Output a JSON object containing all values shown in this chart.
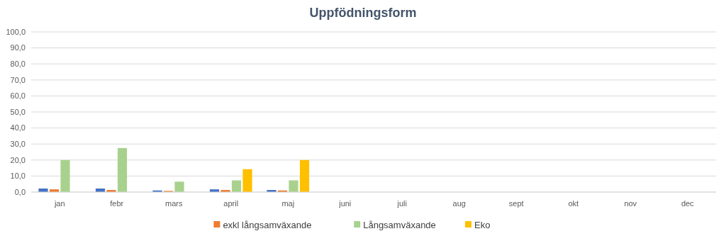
{
  "chart_data": {
    "type": "bar",
    "title": "Uppfödningsform",
    "categories": [
      "jan",
      "febr",
      "mars",
      "april",
      "maj",
      "juni",
      "juli",
      "aug",
      "sept",
      "okt",
      "nov",
      "dec"
    ],
    "series": [
      {
        "color": "#4472c4",
        "values": [
          2.2,
          2.2,
          1.0,
          1.7,
          1.3,
          null,
          null,
          null,
          null,
          null,
          null,
          null
        ]
      },
      {
        "name": "exkl långsamväxande",
        "color": "#ed7d31",
        "values": [
          1.7,
          1.3,
          0.7,
          1.3,
          1.0,
          null,
          null,
          null,
          null,
          null,
          null,
          null
        ]
      },
      {
        "name": "Långsamväxande",
        "color": "#a9d18e",
        "values": [
          20.0,
          27.5,
          6.5,
          7.3,
          7.3,
          null,
          null,
          null,
          null,
          null,
          null,
          null
        ]
      },
      {
        "name": "Eko",
        "color": "#ffc000",
        "values": [
          null,
          null,
          null,
          14.3,
          20.0,
          null,
          null,
          null,
          null,
          null,
          null,
          null
        ]
      }
    ],
    "ylim": [
      0,
      100
    ],
    "yticks": [
      {
        "value": 0,
        "label": "0,0"
      },
      {
        "value": 10,
        "label": "10,0"
      },
      {
        "value": 20,
        "label": "20,0"
      },
      {
        "value": 30,
        "label": "30,0"
      },
      {
        "value": 40,
        "label": "40,0"
      },
      {
        "value": 50,
        "label": "50,0"
      },
      {
        "value": 60,
        "label": "60,0"
      },
      {
        "value": 70,
        "label": "70,0"
      },
      {
        "value": 80,
        "label": "80,0"
      },
      {
        "value": 90,
        "label": "90,0"
      },
      {
        "value": 100,
        "label": "100,0"
      }
    ],
    "grid": "y",
    "legend": "bottom"
  }
}
